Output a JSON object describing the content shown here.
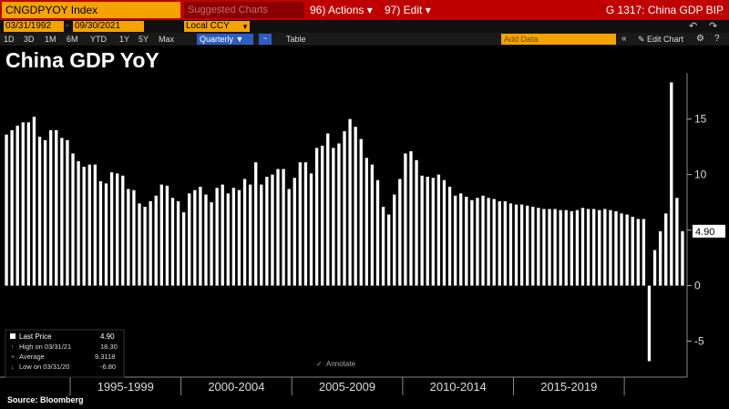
{
  "toolbar": {
    "ticker": "CNGDPYOY Index",
    "suggested": "Suggested Charts",
    "actions": "96) Actions ▾",
    "edit": "97) Edit ▾",
    "graph_title": "G 1317: China GDP BIP"
  },
  "date_range": {
    "start": "03/31/1992",
    "separator": "-",
    "end": "09/30/2021",
    "currency": "Local CCY",
    "currency_arrow": "▾",
    "undo": "↶",
    "redo": "↷"
  },
  "periods": [
    "1D",
    "3D",
    "1M",
    "6M",
    "YTD",
    "1Y",
    "5Y",
    "Max"
  ],
  "frequency": "Quarterly ▼",
  "chart_icon": "~",
  "table_label": "Table",
  "add_data": "Add Data",
  "collapse": "«",
  "edit_chart": "✎ Edit Chart",
  "gear": "⚙",
  "help": "?",
  "title": "China GDP YoY",
  "source": "Source: Bloomberg",
  "annotate_label": "Annotate",
  "last_price_tag": "4.90",
  "legend": {
    "last_price_label": "Last Price",
    "last_price_value": "4.90",
    "high_label": "High on 03/31/21",
    "high_value": "18.30",
    "average_label": "Average",
    "average_value": "9.3118",
    "low_label": "Low on 03/31/20",
    "low_value": "-6.80"
  },
  "colors": {
    "bar": "#ffffff",
    "background": "#000000",
    "command_bar": "#c00000",
    "amber": "#f5a300",
    "accent_blue": "#2d5fc0"
  },
  "chart_data": {
    "type": "bar",
    "title": "China GDP YoY",
    "x_start": "1992-Q1",
    "frequency": "Quarterly",
    "x_group_labels": [
      "1995-1999",
      "2000-2004",
      "2005-2009",
      "2010-2014",
      "2015-2019"
    ],
    "y_ticks": [
      -5,
      0,
      5,
      10,
      15
    ],
    "ylim": [
      -7.5,
      18.5
    ],
    "grid": false,
    "values": [
      13.6,
      14.0,
      14.4,
      14.7,
      14.7,
      15.2,
      13.4,
      13.1,
      14.0,
      14.0,
      13.3,
      13.1,
      11.9,
      11.2,
      10.7,
      10.9,
      10.9,
      9.4,
      9.2,
      10.2,
      10.1,
      9.9,
      8.7,
      8.6,
      7.4,
      7.1,
      7.6,
      8.1,
      9.1,
      9.0,
      7.9,
      7.6,
      6.6,
      8.3,
      8.6,
      8.9,
      8.2,
      7.5,
      8.8,
      9.1,
      8.3,
      8.8,
      8.6,
      9.6,
      9.1,
      11.1,
      9.1,
      9.8,
      10.0,
      10.5,
      10.5,
      8.7,
      9.7,
      11.1,
      11.1,
      10.1,
      12.4,
      12.6,
      13.7,
      12.4,
      12.8,
      13.9,
      15.0,
      14.3,
      13.2,
      11.5,
      10.9,
      9.5,
      7.1,
      6.4,
      8.2,
      9.6,
      11.9,
      12.1,
      11.3,
      9.9,
      9.8,
      9.7,
      10.0,
      9.5,
      8.9,
      8.1,
      8.3,
      8.0,
      7.7,
      7.9,
      8.1,
      7.9,
      7.8,
      7.6,
      7.6,
      7.4,
      7.3,
      7.3,
      7.2,
      7.1,
      7.0,
      6.9,
      6.9,
      6.9,
      6.8,
      6.8,
      6.7,
      6.8,
      7.0,
      6.9,
      6.9,
      6.8,
      6.9,
      6.8,
      6.7,
      6.5,
      6.4,
      6.2,
      6.0,
      6.0,
      -6.8,
      3.2,
      4.9,
      6.5,
      18.3,
      7.9,
      4.9
    ]
  }
}
